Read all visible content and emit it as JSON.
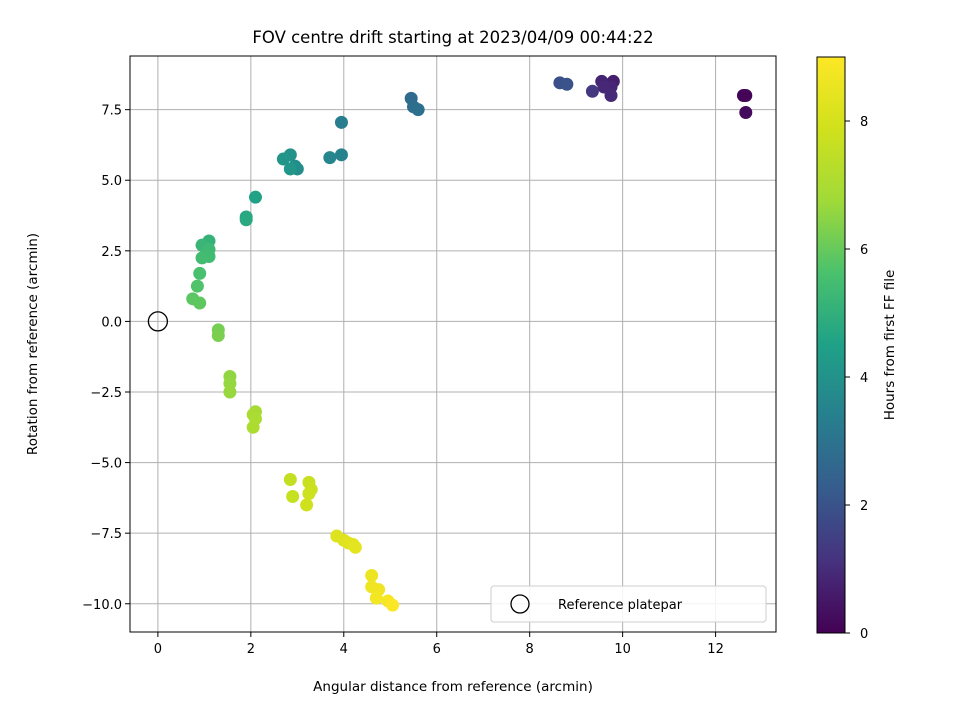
{
  "chart_data": {
    "type": "scatter",
    "title": "FOV centre drift starting at 2023/04/09 00:44:22",
    "xlabel": "Angular distance from reference (arcmin)",
    "ylabel": "Rotation from reference (arcmin)",
    "xlim": [
      -0.6,
      13.3
    ],
    "ylim": [
      -11.0,
      9.4
    ],
    "xticks": [
      0,
      2,
      4,
      6,
      8,
      10,
      12
    ],
    "xtick_labels": [
      "0",
      "2",
      "4",
      "6",
      "8",
      "10",
      "12"
    ],
    "yticks": [
      -10.0,
      -7.5,
      -5.0,
      -2.5,
      0.0,
      2.5,
      5.0,
      7.5
    ],
    "ytick_labels": [
      "−10.0",
      "−7.5",
      "−5.0",
      "−2.5",
      "0.0",
      "2.5",
      "5.0",
      "7.5"
    ],
    "grid": true,
    "legend": {
      "placement": "lower-right",
      "entries": [
        {
          "label": "Reference platepar",
          "marker": "open-circle"
        }
      ]
    },
    "reference_point": {
      "x": 0,
      "y": 0
    },
    "colorbar": {
      "label": "Hours from first FF file",
      "colormap": "viridis",
      "range": [
        0,
        9
      ],
      "ticks": [
        0,
        2,
        4,
        6,
        8
      ],
      "tick_labels": [
        "0",
        "2",
        "4",
        "6",
        "8"
      ]
    },
    "points": [
      {
        "x": 12.6,
        "y": 8.0,
        "hours": 0.05
      },
      {
        "x": 12.65,
        "y": 8.0,
        "hours": 0.1
      },
      {
        "x": 12.65,
        "y": 7.4,
        "hours": 0.2
      },
      {
        "x": 9.8,
        "y": 8.5,
        "hours": 0.7
      },
      {
        "x": 9.55,
        "y": 8.5,
        "hours": 0.8
      },
      {
        "x": 9.75,
        "y": 8.3,
        "hours": 0.85
      },
      {
        "x": 9.6,
        "y": 8.3,
        "hours": 0.9
      },
      {
        "x": 9.75,
        "y": 8.0,
        "hours": 0.95
      },
      {
        "x": 9.35,
        "y": 8.15,
        "hours": 1.3
      },
      {
        "x": 8.65,
        "y": 8.45,
        "hours": 1.9
      },
      {
        "x": 8.8,
        "y": 8.4,
        "hours": 2.0
      },
      {
        "x": 5.45,
        "y": 7.9,
        "hours": 2.7
      },
      {
        "x": 5.5,
        "y": 7.6,
        "hours": 2.8
      },
      {
        "x": 5.6,
        "y": 7.5,
        "hours": 2.9
      },
      {
        "x": 3.95,
        "y": 7.05,
        "hours": 3.3
      },
      {
        "x": 3.95,
        "y": 5.9,
        "hours": 3.5
      },
      {
        "x": 3.7,
        "y": 5.8,
        "hours": 3.6
      },
      {
        "x": 3.0,
        "y": 5.4,
        "hours": 3.85
      },
      {
        "x": 2.95,
        "y": 5.5,
        "hours": 3.9
      },
      {
        "x": 2.85,
        "y": 5.9,
        "hours": 4.0
      },
      {
        "x": 2.7,
        "y": 5.75,
        "hours": 4.1
      },
      {
        "x": 2.85,
        "y": 5.4,
        "hours": 4.15
      },
      {
        "x": 2.1,
        "y": 4.4,
        "hours": 4.55
      },
      {
        "x": 1.9,
        "y": 3.7,
        "hours": 4.7
      },
      {
        "x": 1.9,
        "y": 3.6,
        "hours": 4.75
      },
      {
        "x": 1.1,
        "y": 2.85,
        "hours": 5.1
      },
      {
        "x": 0.95,
        "y": 2.7,
        "hours": 5.2
      },
      {
        "x": 1.1,
        "y": 2.55,
        "hours": 5.3
      },
      {
        "x": 1.05,
        "y": 2.4,
        "hours": 5.35
      },
      {
        "x": 1.1,
        "y": 2.3,
        "hours": 5.4
      },
      {
        "x": 0.95,
        "y": 2.25,
        "hours": 5.45
      },
      {
        "x": 0.9,
        "y": 1.7,
        "hours": 5.6
      },
      {
        "x": 0.85,
        "y": 1.25,
        "hours": 5.7
      },
      {
        "x": 0.75,
        "y": 0.8,
        "hours": 5.85
      },
      {
        "x": 0.9,
        "y": 0.65,
        "hours": 5.9
      },
      {
        "x": 1.3,
        "y": -0.3,
        "hours": 6.2
      },
      {
        "x": 1.3,
        "y": -0.5,
        "hours": 6.25
      },
      {
        "x": 1.55,
        "y": -1.95,
        "hours": 6.55
      },
      {
        "x": 1.55,
        "y": -2.2,
        "hours": 6.6
      },
      {
        "x": 1.55,
        "y": -2.5,
        "hours": 6.65
      },
      {
        "x": 2.1,
        "y": -3.2,
        "hours": 6.9
      },
      {
        "x": 2.05,
        "y": -3.3,
        "hours": 6.95
      },
      {
        "x": 2.1,
        "y": -3.45,
        "hours": 7.0
      },
      {
        "x": 2.05,
        "y": -3.75,
        "hours": 7.05
      },
      {
        "x": 2.85,
        "y": -5.6,
        "hours": 7.6
      },
      {
        "x": 2.9,
        "y": -6.2,
        "hours": 7.65
      },
      {
        "x": 3.25,
        "y": -5.7,
        "hours": 7.7
      },
      {
        "x": 3.3,
        "y": -5.95,
        "hours": 7.75
      },
      {
        "x": 3.25,
        "y": -6.1,
        "hours": 7.8
      },
      {
        "x": 3.2,
        "y": -6.5,
        "hours": 7.85
      },
      {
        "x": 3.85,
        "y": -7.6,
        "hours": 8.2
      },
      {
        "x": 4.0,
        "y": -7.75,
        "hours": 8.25
      },
      {
        "x": 4.1,
        "y": -7.85,
        "hours": 8.3
      },
      {
        "x": 4.2,
        "y": -7.9,
        "hours": 8.35
      },
      {
        "x": 4.25,
        "y": -8.0,
        "hours": 8.4
      },
      {
        "x": 4.6,
        "y": -9.0,
        "hours": 8.6
      },
      {
        "x": 4.6,
        "y": -9.4,
        "hours": 8.65
      },
      {
        "x": 4.75,
        "y": -9.5,
        "hours": 8.7
      },
      {
        "x": 4.7,
        "y": -9.8,
        "hours": 8.75
      },
      {
        "x": 4.95,
        "y": -9.9,
        "hours": 8.85
      },
      {
        "x": 5.05,
        "y": -10.05,
        "hours": 8.95
      }
    ]
  }
}
